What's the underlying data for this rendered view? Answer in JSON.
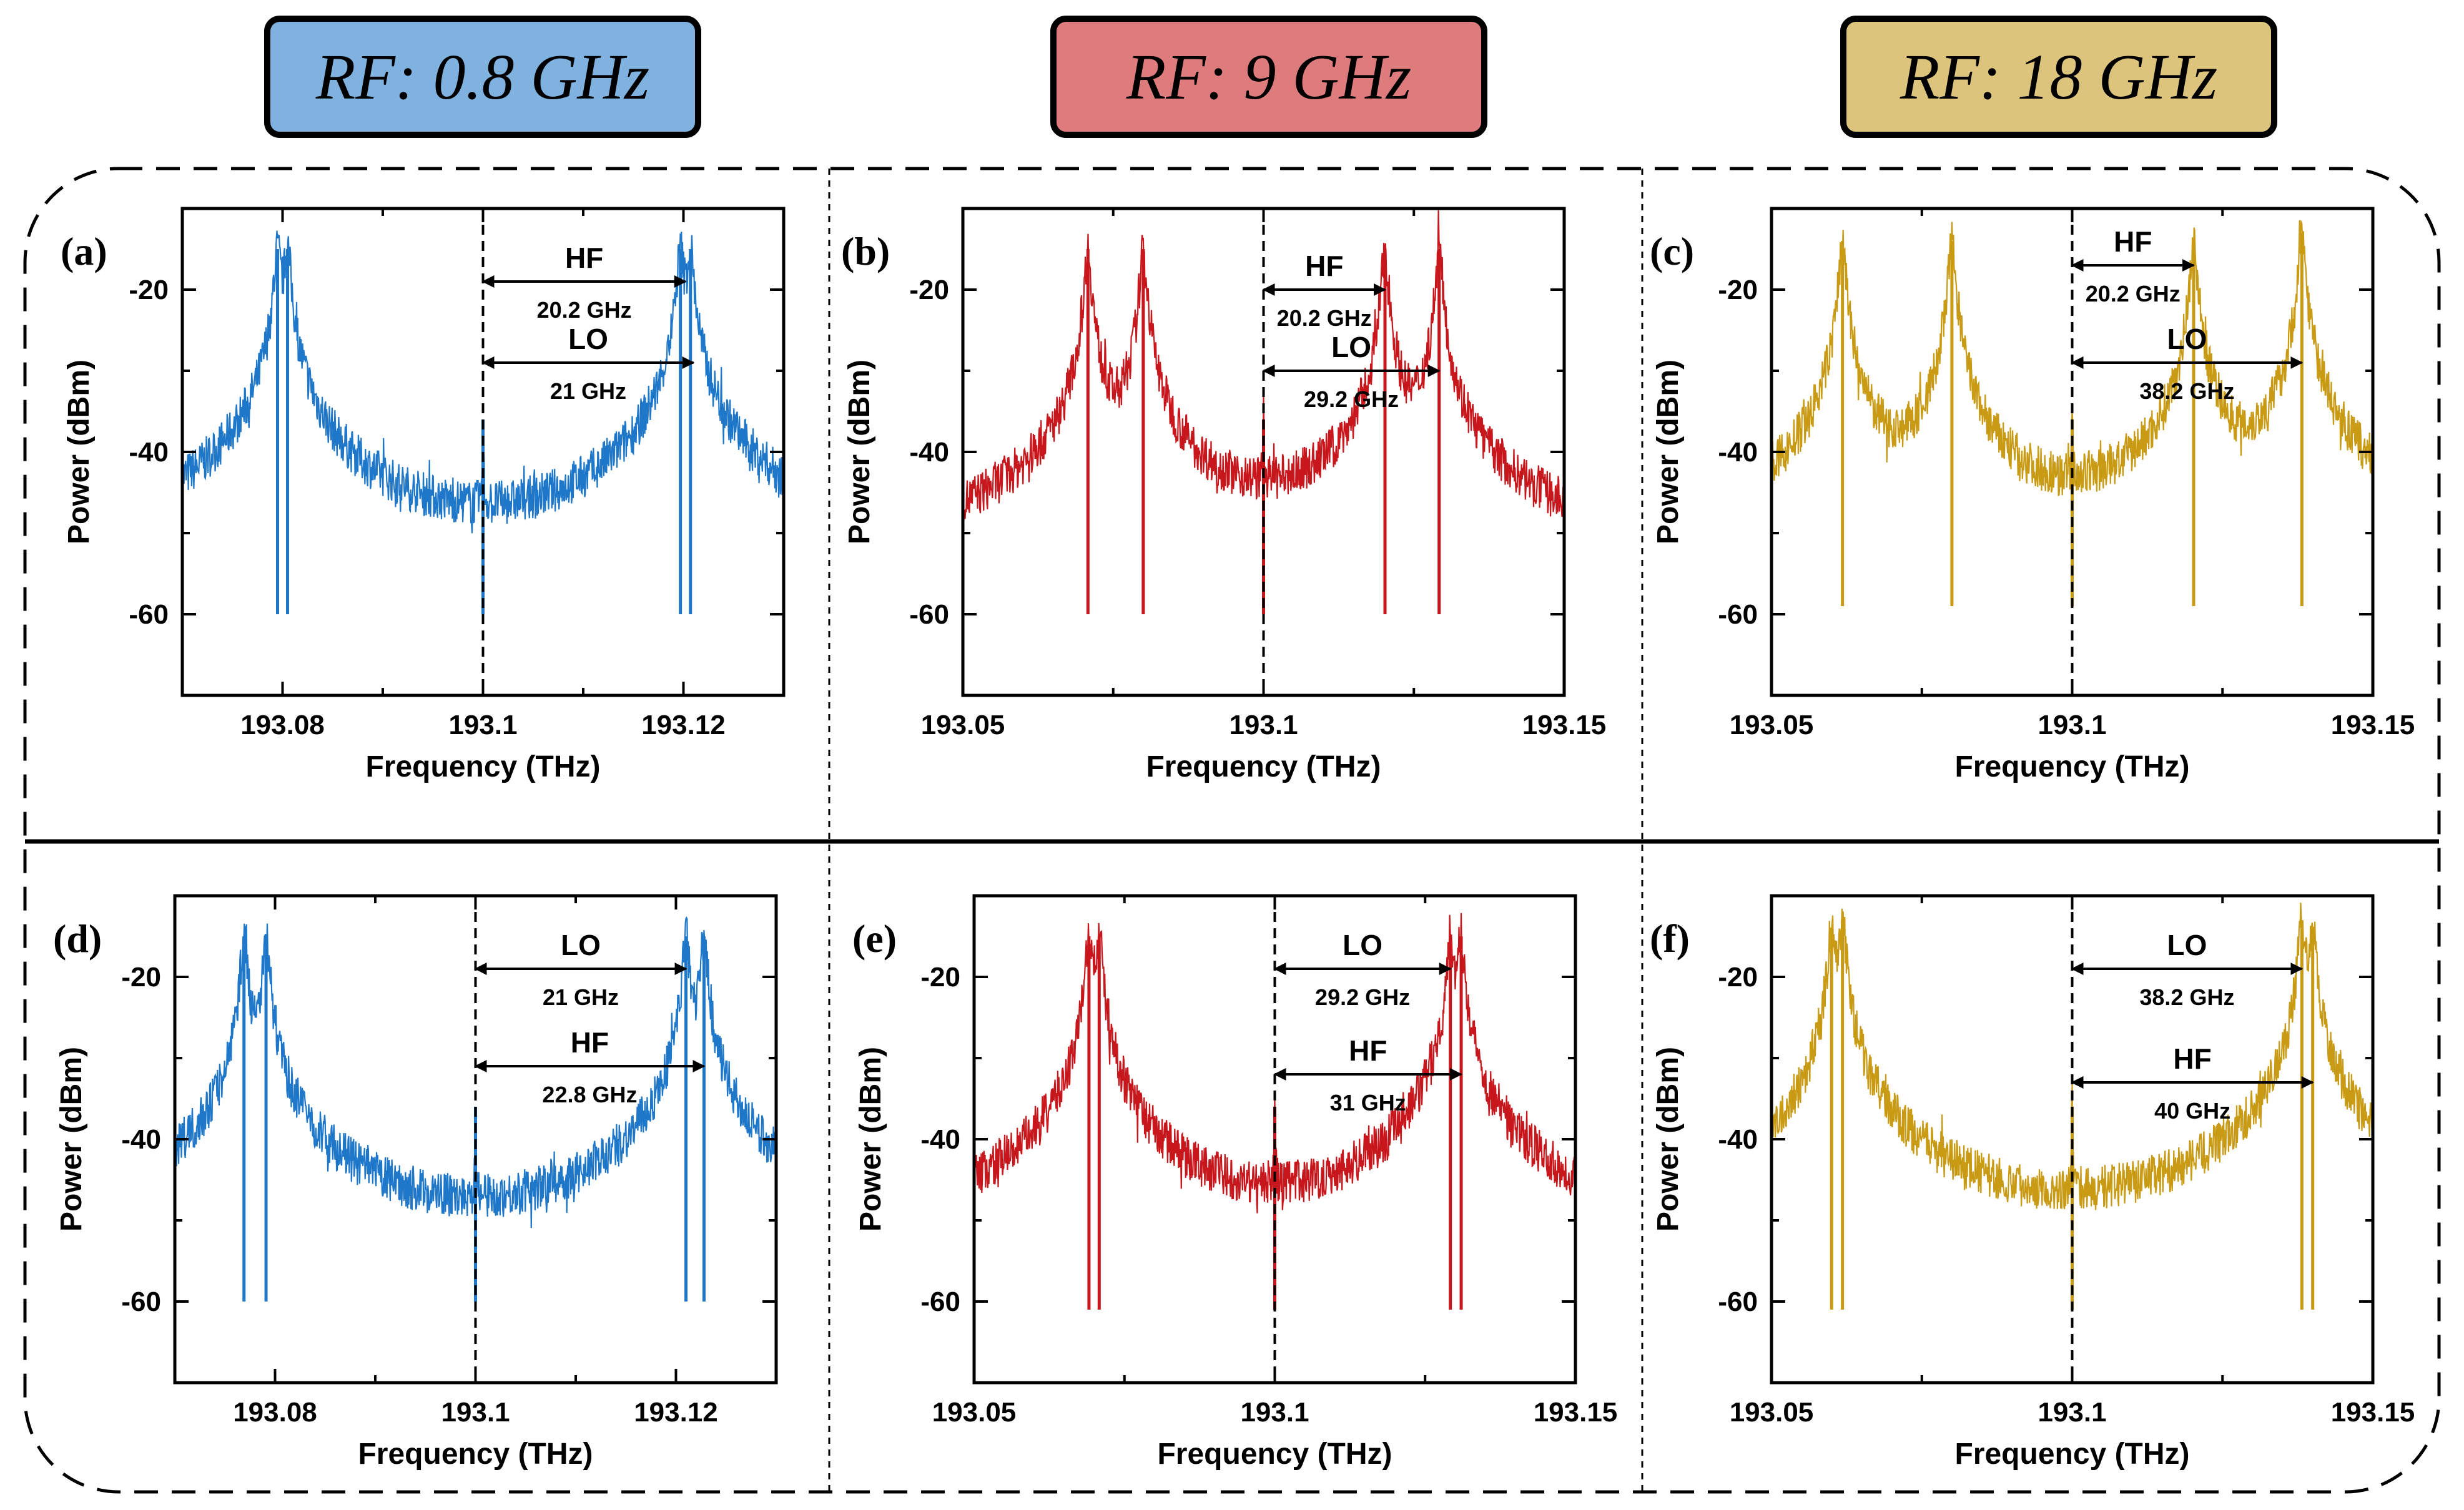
{
  "rf_boxes": [
    {
      "label": "RF: 0.8 GHz",
      "color": "#7fb2de"
    },
    {
      "label": "RF: 9 GHz",
      "color": "#de7b7d"
    },
    {
      "label": "RF: 18 GHz",
      "color": "#dcc47c"
    }
  ],
  "chart_data": [
    {
      "type": "line",
      "panel": "(a)",
      "color": "#1f77c9",
      "xlabel": "Frequency (THz)",
      "ylabel": "Power (dBm)",
      "xlim": [
        193.07,
        193.13
      ],
      "ylim": [
        -70,
        -10
      ],
      "xticks": [
        193.08,
        193.1,
        193.12
      ],
      "xtick_labels": [
        "193.08",
        "193.1",
        "193.12"
      ],
      "yticks": [
        -20,
        -40,
        -60
      ],
      "ytick_labels": [
        "-20",
        "-40",
        "-60"
      ],
      "baseline": -64,
      "ref_x": 193.1,
      "peaks": [
        {
          "x": 193.0795,
          "y": -15
        },
        {
          "x": 193.0805,
          "y": -15
        },
        {
          "x": 193.1,
          "y": -36
        },
        {
          "x": 193.1197,
          "y": -15
        },
        {
          "x": 193.1207,
          "y": -15
        }
      ],
      "annotations": [
        {
          "label": "HF",
          "value": "20.2 GHz",
          "x1": 193.1,
          "x2": 193.1202,
          "y": -19
        },
        {
          "label": "LO",
          "value": "21 GHz",
          "x1": 193.1,
          "x2": 193.121,
          "y": -29
        }
      ]
    },
    {
      "type": "line",
      "panel": "(b)",
      "color": "#c8171c",
      "xlabel": "Frequency (THz)",
      "ylabel": "Power (dBm)",
      "xlim": [
        193.05,
        193.15
      ],
      "ylim": [
        -70,
        -10
      ],
      "xticks": [
        193.05,
        193.1,
        193.15
      ],
      "xtick_labels": [
        "193.05",
        "193.1",
        "193.15"
      ],
      "yticks": [
        -20,
        -40,
        -60
      ],
      "ytick_labels": [
        "-20",
        "-40",
        "-60"
      ],
      "baseline": -64,
      "ref_x": 193.1,
      "peaks": [
        {
          "x": 193.0708,
          "y": -15
        },
        {
          "x": 193.08,
          "y": -15
        },
        {
          "x": 193.1,
          "y": -36
        },
        {
          "x": 193.1202,
          "y": -15
        },
        {
          "x": 193.1292,
          "y": -15
        }
      ],
      "annotations": [
        {
          "label": "HF",
          "value": "20.2 GHz",
          "x1": 193.1,
          "x2": 193.1202,
          "y": -20
        },
        {
          "label": "LO",
          "value": "29.2 GHz",
          "x1": 193.1,
          "x2": 193.1292,
          "y": -30
        }
      ]
    },
    {
      "type": "line",
      "panel": "(c)",
      "color": "#c99a14",
      "xlabel": "Frequency (THz)",
      "ylabel": "Power (dBm)",
      "xlim": [
        193.05,
        193.15
      ],
      "ylim": [
        -70,
        -10
      ],
      "xticks": [
        193.05,
        193.1,
        193.15
      ],
      "xtick_labels": [
        "193.05",
        "193.1",
        "193.15"
      ],
      "yticks": [
        -20,
        -40,
        -60
      ],
      "ytick_labels": [
        "-20",
        "-40",
        "-60"
      ],
      "baseline": -63,
      "ref_x": 193.1,
      "peaks": [
        {
          "x": 193.0618,
          "y": -14
        },
        {
          "x": 193.08,
          "y": -14
        },
        {
          "x": 193.1,
          "y": -36
        },
        {
          "x": 193.1202,
          "y": -14
        },
        {
          "x": 193.1382,
          "y": -13
        }
      ],
      "annotations": [
        {
          "label": "HF",
          "value": "20.2 GHz",
          "x1": 193.1,
          "x2": 193.1202,
          "y": -17
        },
        {
          "label": "LO",
          "value": "38.2 GHz",
          "x1": 193.1,
          "x2": 193.1382,
          "y": -29
        }
      ]
    },
    {
      "type": "line",
      "panel": "(d)",
      "color": "#1f77c9",
      "xlabel": "Frequency (THz)",
      "ylabel": "Power (dBm)",
      "xlim": [
        193.07,
        193.13
      ],
      "ylim": [
        -70,
        -10
      ],
      "xticks": [
        193.08,
        193.1,
        193.12
      ],
      "xtick_labels": [
        "193.08",
        "193.1",
        "193.12"
      ],
      "yticks": [
        -20,
        -40,
        -60
      ],
      "ytick_labels": [
        "-20",
        "-40",
        "-60"
      ],
      "baseline": -64,
      "ref_x": 193.1,
      "peaks": [
        {
          "x": 193.0769,
          "y": -15
        },
        {
          "x": 193.0791,
          "y": -15
        },
        {
          "x": 193.1,
          "y": -36
        },
        {
          "x": 193.121,
          "y": -15
        },
        {
          "x": 193.1228,
          "y": -15
        }
      ],
      "annotations": [
        {
          "label": "LO",
          "value": "21 GHz",
          "x1": 193.1,
          "x2": 193.121,
          "y": -19
        },
        {
          "label": "HF",
          "value": "22.8 GHz",
          "x1": 193.1,
          "x2": 193.1228,
          "y": -31
        }
      ]
    },
    {
      "type": "line",
      "panel": "(e)",
      "color": "#c8171c",
      "xlabel": "Frequency (THz)",
      "ylabel": "Power (dBm)",
      "xlim": [
        193.05,
        193.15
      ],
      "ylim": [
        -70,
        -10
      ],
      "xticks": [
        193.05,
        193.1,
        193.15
      ],
      "xtick_labels": [
        "193.05",
        "193.1",
        "193.15"
      ],
      "yticks": [
        -20,
        -40,
        -60
      ],
      "ytick_labels": [
        "-20",
        "-40",
        "-60"
      ],
      "baseline": -65,
      "ref_x": 193.1,
      "peaks": [
        {
          "x": 193.0691,
          "y": -15
        },
        {
          "x": 193.0708,
          "y": -15
        },
        {
          "x": 193.1,
          "y": -36
        },
        {
          "x": 193.1292,
          "y": -15
        },
        {
          "x": 193.131,
          "y": -15
        }
      ],
      "annotations": [
        {
          "label": "LO",
          "value": "29.2 GHz",
          "x1": 193.1,
          "x2": 193.1292,
          "y": -19
        },
        {
          "label": "HF",
          "value": "31 GHz",
          "x1": 193.1,
          "x2": 193.131,
          "y": -32
        }
      ]
    },
    {
      "type": "line",
      "panel": "(f)",
      "color": "#c99a14",
      "xlabel": "Frequency (THz)",
      "ylabel": "Power (dBm)",
      "xlim": [
        193.05,
        193.15
      ],
      "ylim": [
        -70,
        -10
      ],
      "xticks": [
        193.05,
        193.1,
        193.15
      ],
      "xtick_labels": [
        "193.05",
        "193.1",
        "193.15"
      ],
      "yticks": [
        -20,
        -40,
        -60
      ],
      "ytick_labels": [
        "-20",
        "-40",
        "-60"
      ],
      "baseline": -65,
      "ref_x": 193.1,
      "peaks": [
        {
          "x": 193.06,
          "y": -14
        },
        {
          "x": 193.0618,
          "y": -13
        },
        {
          "x": 193.1,
          "y": -36
        },
        {
          "x": 193.1382,
          "y": -13
        },
        {
          "x": 193.14,
          "y": -14
        }
      ],
      "annotations": [
        {
          "label": "LO",
          "value": "38.2 GHz",
          "x1": 193.1,
          "x2": 193.1382,
          "y": -19
        },
        {
          "label": "HF",
          "value": "40 GHz",
          "x1": 193.1,
          "x2": 193.14,
          "y": -33
        }
      ]
    }
  ]
}
